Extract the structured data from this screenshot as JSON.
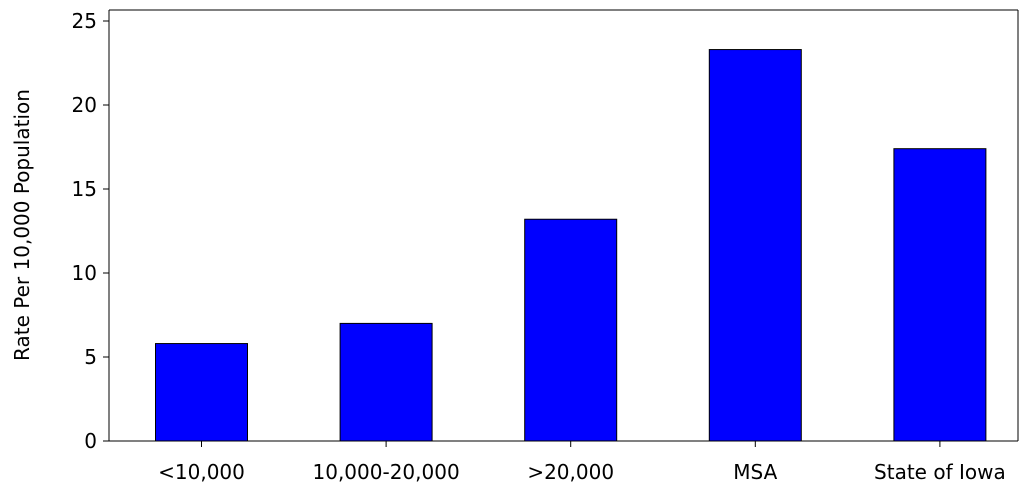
{
  "chart_data": {
    "type": "bar",
    "title": "",
    "xlabel": "",
    "ylabel": "Rate Per 10,000 Population",
    "categories": [
      "<10,000",
      "10,000-20,000",
      ">20,000",
      "MSA",
      "State of Iowa"
    ],
    "values": [
      5.8,
      7.0,
      13.2,
      23.3,
      17.4
    ],
    "ylim": [
      0,
      25
    ],
    "yticks": [
      0,
      5,
      10,
      15,
      20,
      25
    ],
    "ytick_labels": [
      "0",
      "5",
      "10",
      "15",
      "20",
      "25"
    ],
    "grid": false,
    "legend": "none",
    "bar_color": "#0000ff",
    "bar_edge_color": "#000000"
  }
}
